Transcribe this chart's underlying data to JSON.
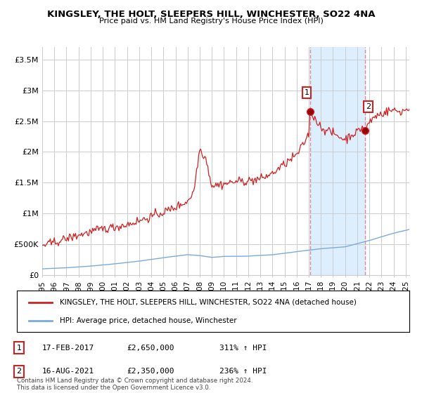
{
  "title": "KINGSLEY, THE HOLT, SLEEPERS HILL, WINCHESTER, SO22 4NA",
  "subtitle": "Price paid vs. HM Land Registry's House Price Index (HPI)",
  "ylim": [
    0,
    3700000
  ],
  "yticks": [
    0,
    500000,
    1000000,
    1500000,
    2000000,
    2500000,
    3000000,
    3500000
  ],
  "ytick_labels": [
    "£0",
    "£500K",
    "£1M",
    "£1.5M",
    "£2M",
    "£2.5M",
    "£3M",
    "£3.5M"
  ],
  "legend_line1": "KINGSLEY, THE HOLT, SLEEPERS HILL, WINCHESTER, SO22 4NA (detached house)",
  "legend_line2": "HPI: Average price, detached house, Winchester",
  "annotation1_date": "17-FEB-2017",
  "annotation1_price": "£2,650,000",
  "annotation1_hpi": "311% ↑ HPI",
  "annotation2_date": "16-AUG-2021",
  "annotation2_price": "£2,350,000",
  "annotation2_hpi": "236% ↑ HPI",
  "footnote": "Contains HM Land Registry data © Crown copyright and database right 2024.\nThis data is licensed under the Open Government Licence v3.0.",
  "line1_color": "#cc2222",
  "line2_color": "#7aaadd",
  "shade_color": "#ddeeff",
  "vline_color": "#dd8899",
  "background_color": "#ffffff",
  "grid_color": "#cccccc",
  "annotation_box_color": "#cc2222",
  "sale1_x": 2017.12,
  "sale1_y": 2650000,
  "sale2_x": 2021.62,
  "sale2_y": 2350000,
  "xmin": 1995,
  "xmax": 2025.3
}
